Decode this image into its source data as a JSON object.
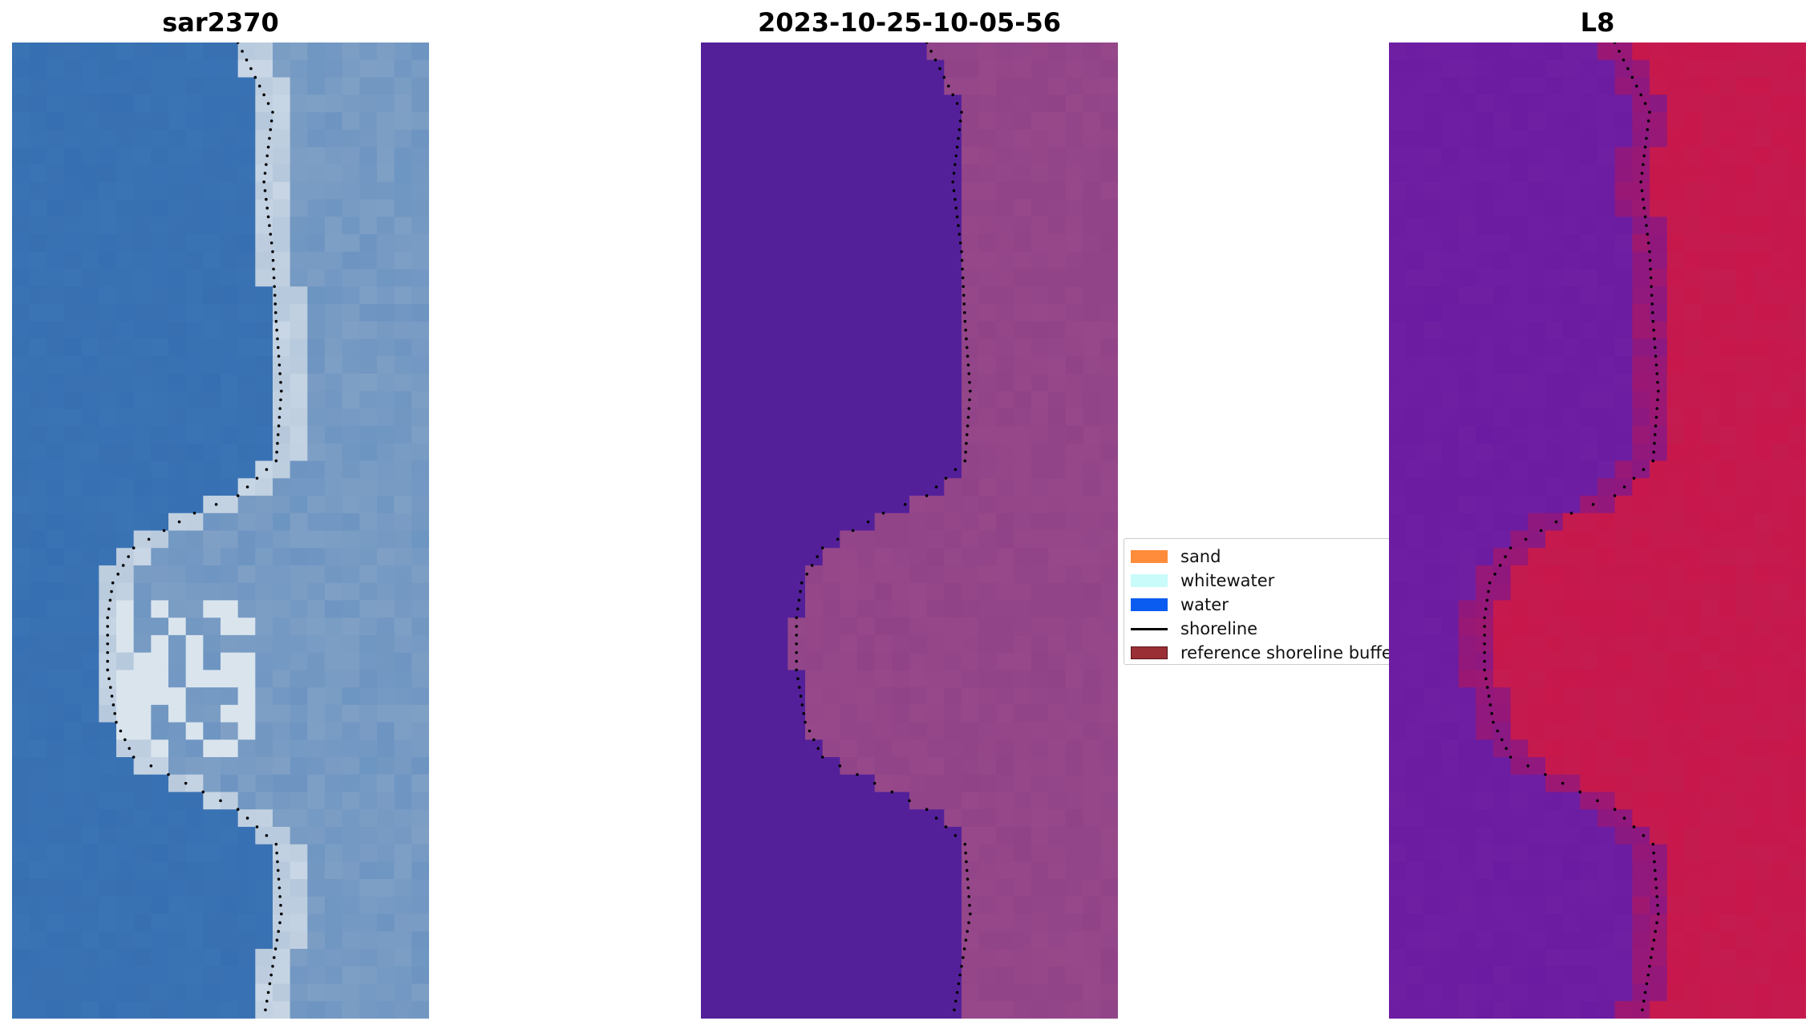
{
  "panels": {
    "left_title": "sar2370",
    "middle_title": "2023-10-25-10-05-56",
    "right_title": "L8"
  },
  "legend": {
    "items": [
      {
        "label": "sand",
        "color": "#ff8c3a",
        "kind": "patch"
      },
      {
        "label": "whitewater",
        "color": "#c9fbfb",
        "kind": "patch"
      },
      {
        "label": "water",
        "color": "#0a5cf0",
        "kind": "patch"
      },
      {
        "label": "shoreline",
        "color": "#000000",
        "kind": "line"
      },
      {
        "label": "reference shoreline buffer",
        "color": "#9a2f36",
        "kind": "patch"
      }
    ]
  },
  "colors": {
    "rgb_water": "#3d78b8",
    "rgb_land": "#8fa9c8",
    "rgb_bright": "#e6eef4",
    "class_water": "#54209a",
    "class_land": "#8a3e86",
    "ndwi_water": "#6a1aa0",
    "ndwi_land": "#c8164a"
  }
}
